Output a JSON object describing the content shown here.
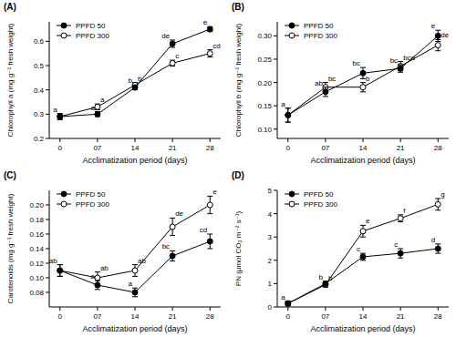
{
  "chart_data": [
    {
      "type": "line",
      "title": "(A)",
      "x_label": "Acclimatization period (days)",
      "y_label": "Chlorophyll a (mg g⁻¹ fresh weight)",
      "x": [
        0,
        7,
        14,
        21,
        28
      ],
      "xlim": [
        -2,
        30
      ],
      "xticks": [
        0,
        {
          "value": 7,
          "label": "07"
        },
        14,
        21,
        28
      ],
      "ylim": [
        0.2,
        0.68
      ],
      "yticks": [
        0.2,
        0.3,
        0.4,
        0.5,
        0.6
      ],
      "legend": "upper left",
      "series": [
        {
          "name": "PPFD 50",
          "color": "#000000",
          "marker": "filled-circle",
          "line_style": "solid",
          "values": [
            0.29,
            0.3,
            0.41,
            0.59,
            0.65
          ],
          "errors": [
            0.012,
            0.01,
            0.01,
            0.015,
            0.01
          ],
          "letters": [
            "a",
            "a",
            "b",
            "de",
            "e"
          ]
        },
        {
          "name": "PPFD 300",
          "color": "#000000",
          "marker": "open-circle",
          "line_style": "solid",
          "values": [
            0.29,
            0.33,
            0.42,
            0.51,
            0.55
          ],
          "errors": [
            0.012,
            0.012,
            0.01,
            0.012,
            0.015
          ],
          "letters": [
            null,
            "a",
            "b",
            "c",
            "cd"
          ]
        }
      ]
    },
    {
      "type": "line",
      "title": "(B)",
      "x_label": "Acclimatization period (days)",
      "y_label": "Chlorophyll b (mg g⁻¹ fresh weight)",
      "x": [
        0,
        7,
        14,
        21,
        28
      ],
      "xlim": [
        -2,
        30
      ],
      "xticks": [
        0,
        {
          "value": 7,
          "label": "07"
        },
        14,
        21,
        28
      ],
      "ylim": [
        0.08,
        0.33
      ],
      "yticks": [
        {
          "value": 0.1,
          "label": "0.10"
        },
        0.15,
        {
          "value": 0.2,
          "label": "0.20"
        },
        0.25,
        {
          "value": 0.3,
          "label": "0.30"
        }
      ],
      "legend": "upper left",
      "series": [
        {
          "name": "PPFD 50",
          "color": "#000000",
          "marker": "filled-circle",
          "line_style": "solid",
          "values": [
            0.13,
            0.18,
            0.22,
            0.23,
            0.3
          ],
          "errors": [
            0.015,
            0.01,
            0.012,
            0.008,
            0.012
          ],
          "letters": [
            "a",
            "ab",
            "bc",
            "bc",
            "e"
          ]
        },
        {
          "name": "PPFD 300",
          "color": "#000000",
          "marker": "open-circle",
          "line_style": "solid",
          "values": [
            0.13,
            0.19,
            0.19,
            0.235,
            0.28
          ],
          "errors": [
            0.015,
            0.01,
            0.01,
            0.01,
            0.012
          ],
          "letters": [
            null,
            "bc",
            "b",
            "bcd",
            "de"
          ]
        }
      ]
    },
    {
      "type": "line",
      "title": "(C)",
      "x_label": "Acclimatization period (days)",
      "y_label": "Carotenoids (mg g⁻¹ fresh weight)",
      "x": [
        0,
        7,
        14,
        21,
        28
      ],
      "xlim": [
        -2,
        30
      ],
      "xticks": [
        0,
        {
          "value": 7,
          "label": "07"
        },
        14,
        21,
        28
      ],
      "ylim": [
        0.06,
        0.22
      ],
      "yticks": [
        0.08,
        {
          "value": 0.1,
          "label": "0.10"
        },
        0.12,
        0.14,
        0.16,
        0.18,
        {
          "value": 0.2,
          "label": "0.20"
        }
      ],
      "legend": "upper left",
      "series": [
        {
          "name": "PPFD 50",
          "color": "#000000",
          "marker": "filled-circle",
          "line_style": "solid",
          "values": [
            0.11,
            0.09,
            0.08,
            0.13,
            0.15
          ],
          "errors": [
            0.008,
            0.006,
            0.006,
            0.007,
            0.01
          ],
          "letters": [
            "ab",
            "a",
            "a",
            "bc",
            "cd"
          ]
        },
        {
          "name": "PPFD 300",
          "color": "#000000",
          "marker": "open-circle",
          "line_style": "solid",
          "values": [
            0.11,
            0.1,
            0.11,
            0.17,
            0.2
          ],
          "errors": [
            0.008,
            0.008,
            0.008,
            0.012,
            0.012
          ],
          "letters": [
            null,
            "ab",
            "ab",
            "de",
            "e"
          ]
        }
      ]
    },
    {
      "type": "line",
      "title": "(D)",
      "x_label": "Acclimatization period (days)",
      "y_label": "PN (µmol CO₂ m⁻² s⁻¹)",
      "x": [
        0,
        7,
        14,
        21,
        28
      ],
      "xlim": [
        -2,
        30
      ],
      "xticks": [
        0,
        {
          "value": 7,
          "label": "07"
        },
        14,
        21,
        28
      ],
      "ylim": [
        0,
        5
      ],
      "yticks": [
        0,
        1,
        2,
        3,
        4,
        5
      ],
      "legend": "upper left",
      "series": [
        {
          "name": "PPFD 50",
          "color": "#000000",
          "marker": "filled-circle",
          "line_style": "solid",
          "values": [
            0.15,
            1.0,
            2.15,
            2.3,
            2.5
          ],
          "errors": [
            0.1,
            0.1,
            0.15,
            0.2,
            0.2
          ],
          "letters": [
            "a",
            "b",
            "c",
            "c",
            "d"
          ]
        },
        {
          "name": "PPFD 300",
          "color": "#000000",
          "marker": "open-circle",
          "line_style": "solid",
          "values": [
            0.15,
            0.95,
            3.25,
            3.8,
            4.4
          ],
          "errors": [
            0.1,
            0.1,
            0.25,
            0.15,
            0.25
          ],
          "letters": [
            null,
            "b",
            "e",
            "f",
            "g"
          ]
        }
      ]
    }
  ]
}
